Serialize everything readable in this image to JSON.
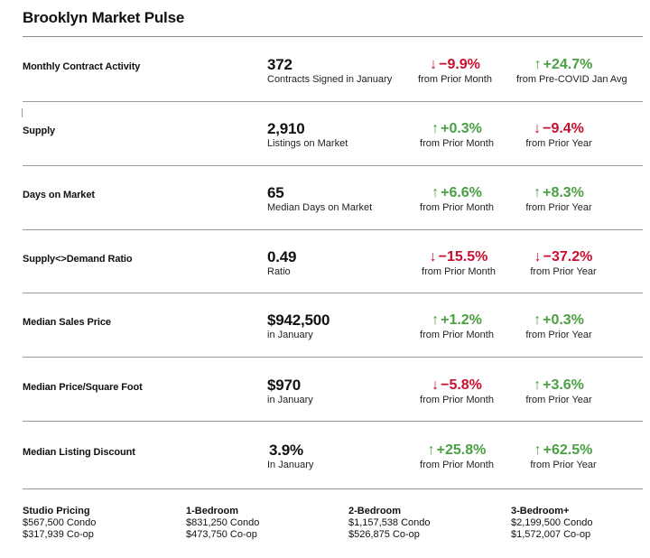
{
  "title": "Brooklyn Market Pulse",
  "colors": {
    "up": "#4aa042",
    "down": "#c8102e",
    "rule": "#9a9a9a"
  },
  "rows": [
    {
      "label": "Monthly Contract Activity",
      "value": "372",
      "sub": "Contracts Signed in January",
      "c1": {
        "dir": "down",
        "arrow": "↓",
        "text": "−9.9%",
        "caption": "from Prior Month"
      },
      "c2": {
        "dir": "up",
        "arrow": "↑",
        "text": "+24.7%",
        "caption": "from Pre-COVID Jan Avg"
      }
    },
    {
      "label": "Supply",
      "value": "2,910",
      "sub": "Listings on Market",
      "c1": {
        "dir": "up",
        "arrow": "↑",
        "text": "+0.3%",
        "caption": "from Prior Month"
      },
      "c2": {
        "dir": "down",
        "arrow": "↓",
        "text": "−9.4%",
        "caption": "from Prior Year"
      }
    },
    {
      "label": "Days on Market",
      "value": "65",
      "sub": "Median Days on Market",
      "c1": {
        "dir": "up",
        "arrow": "↑",
        "text": "+6.6%",
        "caption": "from Prior Month"
      },
      "c2": {
        "dir": "up",
        "arrow": "↑",
        "text": "+8.3%",
        "caption": "from Prior Year"
      }
    },
    {
      "label": "Supply<>Demand Ratio",
      "value": "0.49",
      "sub": "Ratio",
      "c1": {
        "dir": "down",
        "arrow": "↓",
        "text": "−15.5%",
        "caption": "from Prior Month"
      },
      "c2": {
        "dir": "down",
        "arrow": "↓",
        "text": "−37.2%",
        "caption": "from Prior Year"
      }
    },
    {
      "label": "Median Sales Price",
      "value": "$942,500",
      "sub": "in January",
      "c1": {
        "dir": "up",
        "arrow": "↑",
        "text": "+1.2%",
        "caption": "from Prior Month"
      },
      "c2": {
        "dir": "up",
        "arrow": "↑",
        "text": "+0.3%",
        "caption": "from Prior Year"
      }
    },
    {
      "label": "Median Price/Square Foot",
      "value": "$970",
      "sub": "in January",
      "c1": {
        "dir": "down",
        "arrow": "↓",
        "text": "−5.8%",
        "caption": "from Prior Month"
      },
      "c2": {
        "dir": "up",
        "arrow": "↑",
        "text": "+3.6%",
        "caption": "from Prior Year"
      }
    },
    {
      "label": "Median Listing Discount",
      "value": "3.9%",
      "sub": "In January",
      "c1": {
        "dir": "up",
        "arrow": "↑",
        "text": "+25.8%",
        "caption": "from Prior Month"
      },
      "c2": {
        "dir": "up",
        "arrow": "↑",
        "text": "+62.5%",
        "caption": "from Prior Year"
      }
    }
  ],
  "footer": [
    {
      "heading": "Studio Pricing",
      "condo": "$567,500 Condo",
      "coop": "$317,939 Co-op"
    },
    {
      "heading": "1-Bedroom",
      "condo": "$831,250 Condo",
      "coop": "$473,750 Co-op"
    },
    {
      "heading": "2-Bedroom",
      "condo": "$1,157,538 Condo",
      "coop": "$526,875 Co-op"
    },
    {
      "heading": "3-Bedroom+",
      "condo": "$2,199,500 Condo",
      "coop": "$1,572,007 Co-op"
    }
  ]
}
